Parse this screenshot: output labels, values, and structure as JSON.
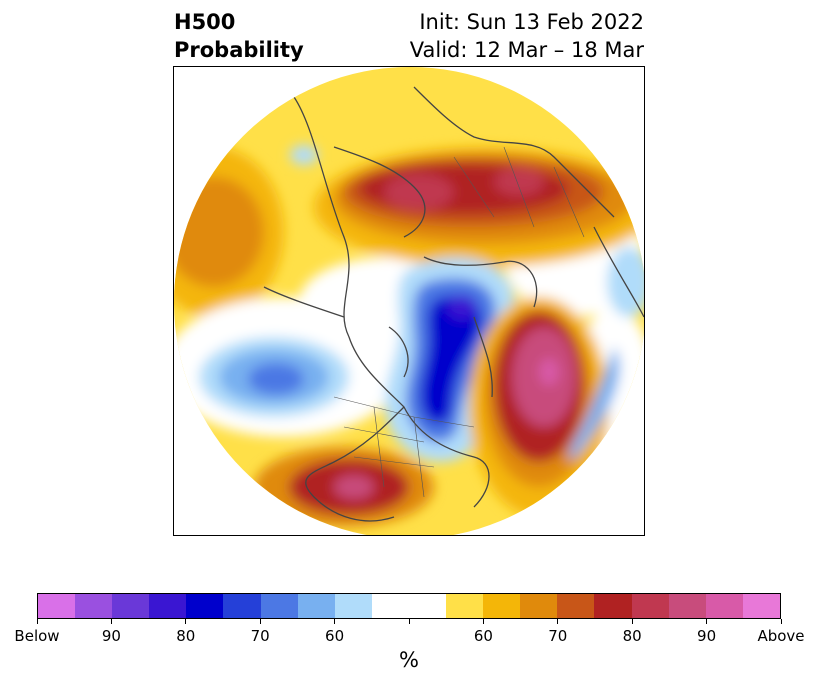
{
  "title": {
    "variable": "H500",
    "kind": "Probability",
    "init": "Init: Sun 13 Feb 2022",
    "valid": "Valid: 12 Mar – 18 Mar"
  },
  "colorbar": {
    "unit": "%",
    "colors": [
      "#d970e8",
      "#9a50e0",
      "#6a38d8",
      "#3a16d2",
      "#0000cc",
      "#2540d8",
      "#4c78e4",
      "#78b0f0",
      "#b0dcfa",
      "#ffffff",
      "#ffffff",
      "#ffe048",
      "#f4b608",
      "#e08a0c",
      "#c85618",
      "#b02222",
      "#c03850",
      "#c84c7c",
      "#d85aa8",
      "#e878d8"
    ],
    "tick_labels": [
      "Below",
      "90",
      "80",
      "70",
      "60",
      "",
      "60",
      "70",
      "80",
      "90",
      "Above"
    ]
  },
  "map": {
    "projection": "north-polar-stereographic",
    "below_color_scale": "blue/purple",
    "above_color_scale": "yellow/red/pink"
  }
}
